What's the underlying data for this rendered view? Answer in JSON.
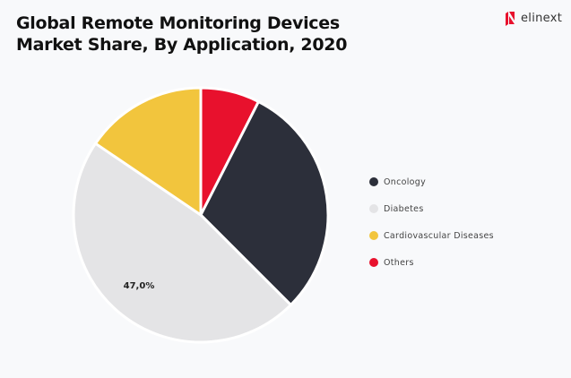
{
  "chart_data": {
    "type": "pie",
    "title": "Global Remote Monitoring Devices Market Share, By Application, 2020",
    "categories": [
      "Others",
      "Oncology",
      "Diabetes",
      "Cardiovascular Diseases"
    ],
    "values": [
      7.5,
      30.0,
      47.0,
      15.5
    ],
    "colors": [
      "#e8112d",
      "#2c2f3a",
      "#e4e4e6",
      "#f2c53d"
    ],
    "data_labels": {
      "Diabetes": "47,0%"
    },
    "legend": {
      "placement": "right",
      "entries": [
        {
          "label": "Oncology",
          "color": "#2c2f3a"
        },
        {
          "label": "Diabetes",
          "color": "#e4e4e6"
        },
        {
          "label": "Cardiovascular Diseases",
          "color": "#f2c53d"
        },
        {
          "label": "Others",
          "color": "#e8112d"
        }
      ]
    }
  },
  "brand": {
    "name": "elinext",
    "color": "#e8112d"
  }
}
